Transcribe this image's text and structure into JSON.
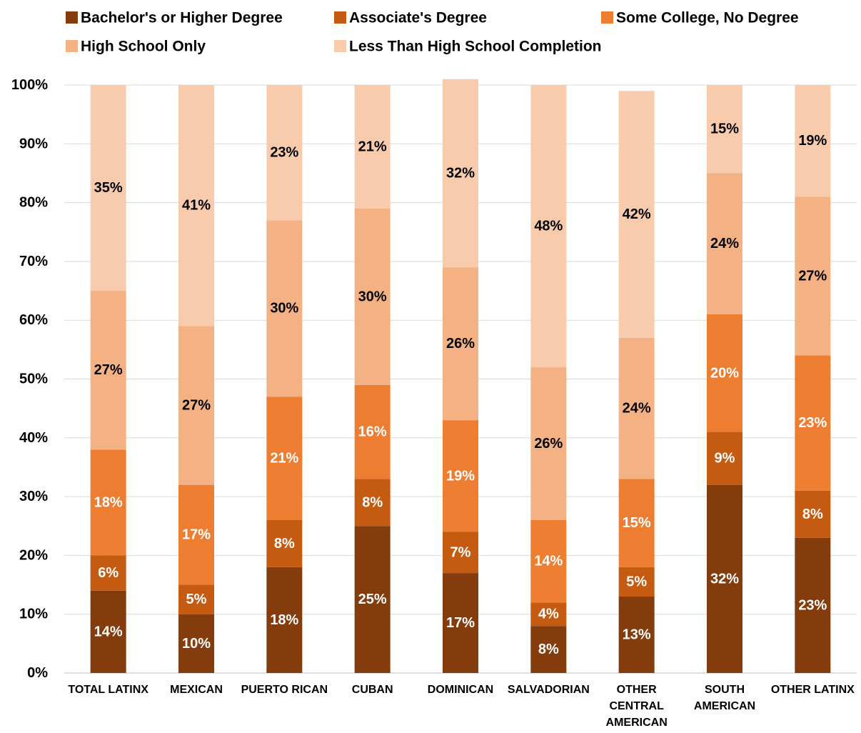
{
  "chart_data": {
    "type": "bar",
    "stacked": true,
    "percent_axis": true,
    "title": "",
    "xlabel": "",
    "ylabel": "",
    "ylim": [
      0,
      100
    ],
    "yticks": [
      "0%",
      "10%",
      "20%",
      "30%",
      "40%",
      "50%",
      "60%",
      "70%",
      "80%",
      "90%",
      "100%"
    ],
    "grid": true,
    "legend_position": "top",
    "categories": [
      [
        "TOTAL LATINX"
      ],
      [
        "MEXICAN"
      ],
      [
        "PUERTO RICAN"
      ],
      [
        "CUBAN"
      ],
      [
        "DOMINICAN"
      ],
      [
        "SALVADORIAN"
      ],
      [
        "OTHER",
        "CENTRAL",
        "AMERICAN"
      ],
      [
        "SOUTH",
        "AMERICAN"
      ],
      [
        "OTHER LATINX"
      ]
    ],
    "series": [
      {
        "name": "Bachelor's or Higher Degree",
        "color": "#843c0c",
        "label_color": "#ffffff",
        "values": [
          14,
          10,
          18,
          25,
          17,
          8,
          13,
          32,
          23
        ],
        "labels": [
          "14%",
          "10%",
          "18%",
          "25%",
          "17%",
          "8%",
          "13%",
          "32%",
          "23%"
        ]
      },
      {
        "name": "Associate's Degree",
        "color": "#c55a11",
        "label_color": "#ffffff",
        "values": [
          6,
          5,
          8,
          8,
          7,
          4,
          5,
          9,
          8
        ],
        "labels": [
          "6%",
          "5%",
          "8%",
          "8%",
          "7%",
          "4%",
          "5%",
          "9%",
          "8%"
        ]
      },
      {
        "name": "Some College, No Degree",
        "color": "#ed7d31",
        "label_color": "#ffffff",
        "values": [
          18,
          17,
          21,
          16,
          19,
          14,
          15,
          20,
          23
        ],
        "labels": [
          "18%",
          "17%",
          "21%",
          "16%",
          "19%",
          "14%",
          "15%",
          "20%",
          "23%"
        ]
      },
      {
        "name": "High School Only",
        "color": "#f4b183",
        "label_color": "#000000",
        "values": [
          27,
          27,
          30,
          30,
          26,
          26,
          24,
          24,
          27
        ],
        "labels": [
          "27%",
          "27%",
          "30%",
          "30%",
          "26%",
          "26%",
          "24%",
          "24%",
          "27%"
        ]
      },
      {
        "name": "Less Than High School Completion",
        "color": "#f8cbad",
        "label_color": "#000000",
        "values": [
          35,
          41,
          23,
          21,
          32,
          48,
          42,
          15,
          19
        ],
        "labels": [
          "35%",
          "41%",
          "23%",
          "21%",
          "32%",
          "48%",
          "42%",
          "15%",
          "19%"
        ]
      }
    ]
  }
}
